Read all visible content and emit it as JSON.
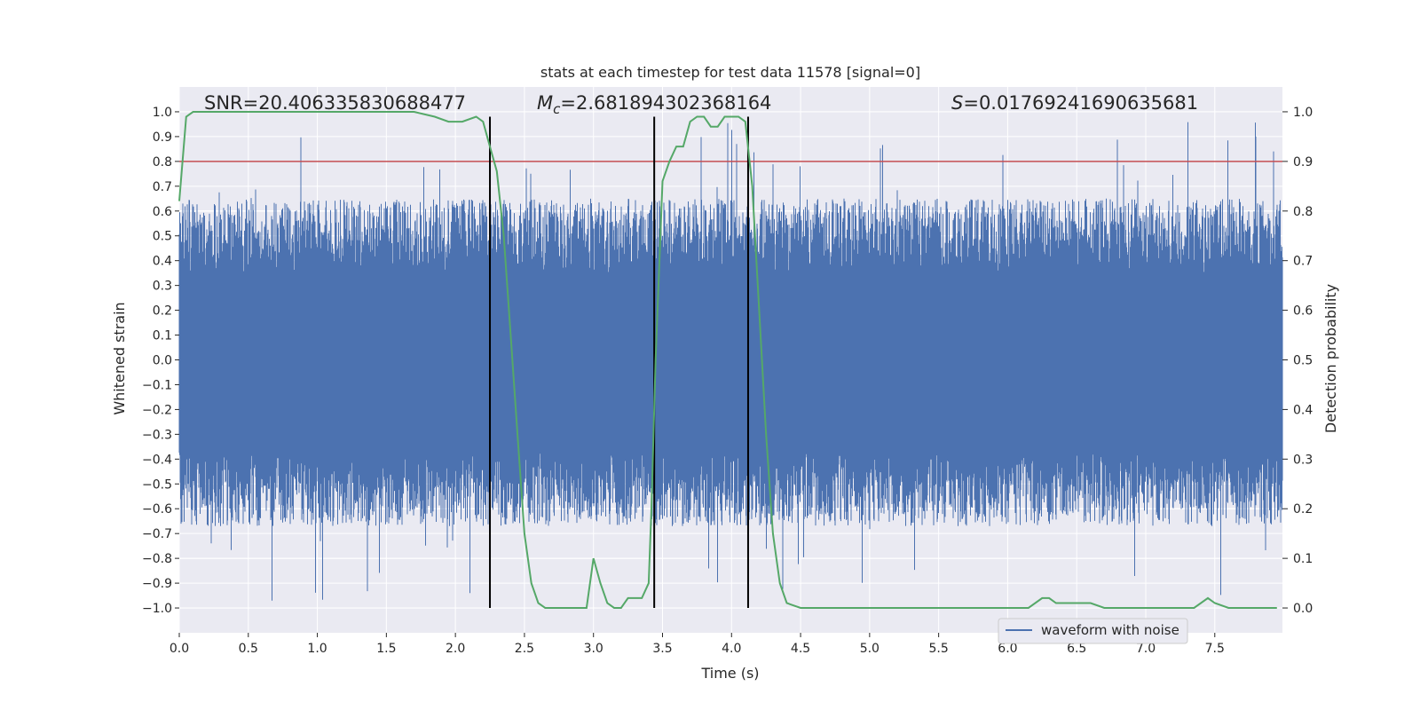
{
  "chart_data": {
    "type": "line",
    "title": "stats at each timestep for test data 11578 [signal=0]",
    "xlabel": "Time (s)",
    "ylabel": "Whitened strain",
    "y2label": "Detection probability",
    "xlim": [
      0.0,
      7.99
    ],
    "ylim": [
      -1.1,
      1.1
    ],
    "y2lim": [
      -0.05,
      1.05
    ],
    "xticks": [
      "0.0",
      "0.5",
      "1.0",
      "1.5",
      "2.0",
      "2.5",
      "3.0",
      "3.5",
      "4.0",
      "4.5",
      "5.0",
      "5.5",
      "6.0",
      "6.5",
      "7.0",
      "7.5"
    ],
    "yticks": [
      "1.0",
      "0.9",
      "0.8",
      "0.7",
      "0.6",
      "0.5",
      "0.4",
      "0.3",
      "0.2",
      "0.1",
      "0.0",
      "−0.1",
      "−0.2",
      "−0.3",
      "−0.4",
      "−0.5",
      "−0.6",
      "−0.7",
      "−0.8",
      "−0.9",
      "−1.0"
    ],
    "y2ticks": [
      "1.0",
      "0.9",
      "0.8",
      "0.7",
      "0.6",
      "0.5",
      "0.4",
      "0.3",
      "0.2",
      "0.1",
      "0.0"
    ],
    "legend": {
      "label": "waveform with noise",
      "placement": "lower-right",
      "color": "#4c72b0"
    },
    "threshold": {
      "y2": 0.9,
      "color": "#c44e52"
    },
    "vlines": {
      "x": [
        2.25,
        3.44,
        4.12
      ],
      "y2_range": [
        0.0,
        0.99
      ],
      "color": "#000000"
    },
    "annotations": {
      "snr": "SNR=20.406335830688477",
      "mc_value": "=2.681894302368164",
      "s_value": "=0.01769241690635681"
    },
    "waveform": {
      "color": "#4c72b0",
      "description_free_noise": true,
      "amplitude_core": 0.35,
      "peak_max": 0.97,
      "trough_min": -1.0
    },
    "detection_probability": {
      "color": "#55a868",
      "x": [
        0.0,
        0.05,
        0.1,
        0.2,
        0.3,
        0.5,
        0.7,
        0.9,
        1.1,
        1.3,
        1.5,
        1.7,
        1.85,
        1.95,
        2.05,
        2.15,
        2.2,
        2.25,
        2.3,
        2.35,
        2.4,
        2.45,
        2.5,
        2.55,
        2.6,
        2.65,
        2.7,
        2.75,
        2.8,
        2.85,
        2.9,
        2.95,
        3.0,
        3.05,
        3.1,
        3.15,
        3.2,
        3.25,
        3.3,
        3.35,
        3.4,
        3.42,
        3.45,
        3.5,
        3.55,
        3.6,
        3.65,
        3.7,
        3.75,
        3.8,
        3.85,
        3.9,
        3.95,
        4.0,
        4.05,
        4.1,
        4.15,
        4.2,
        4.25,
        4.3,
        4.35,
        4.4,
        4.5,
        4.7,
        5.0,
        5.3,
        5.6,
        5.7,
        5.8,
        6.0,
        6.15,
        6.25,
        6.3,
        6.35,
        6.4,
        6.5,
        6.55,
        6.6,
        6.7,
        6.8,
        7.0,
        7.2,
        7.35,
        7.45,
        7.5,
        7.6,
        7.8,
        7.95
      ],
      "y": [
        0.82,
        0.99,
        1.0,
        1.0,
        1.0,
        1.0,
        1.0,
        1.0,
        1.0,
        1.0,
        1.0,
        1.0,
        0.99,
        0.98,
        0.98,
        0.99,
        0.98,
        0.93,
        0.88,
        0.75,
        0.55,
        0.35,
        0.15,
        0.05,
        0.01,
        0.0,
        0.0,
        0.0,
        0.0,
        0.0,
        0.0,
        0.0,
        0.1,
        0.05,
        0.01,
        0.0,
        0.0,
        0.02,
        0.02,
        0.02,
        0.05,
        0.2,
        0.5,
        0.86,
        0.9,
        0.93,
        0.93,
        0.98,
        0.99,
        0.99,
        0.97,
        0.97,
        0.99,
        0.99,
        0.99,
        0.98,
        0.85,
        0.6,
        0.35,
        0.15,
        0.05,
        0.01,
        0.0,
        0.0,
        0.0,
        0.0,
        0.0,
        0.0,
        0.0,
        0.0,
        0.0,
        0.02,
        0.02,
        0.01,
        0.01,
        0.01,
        0.01,
        0.01,
        0.0,
        0.0,
        0.0,
        0.0,
        0.0,
        0.02,
        0.01,
        0.0,
        0.0,
        0.0
      ]
    }
  }
}
